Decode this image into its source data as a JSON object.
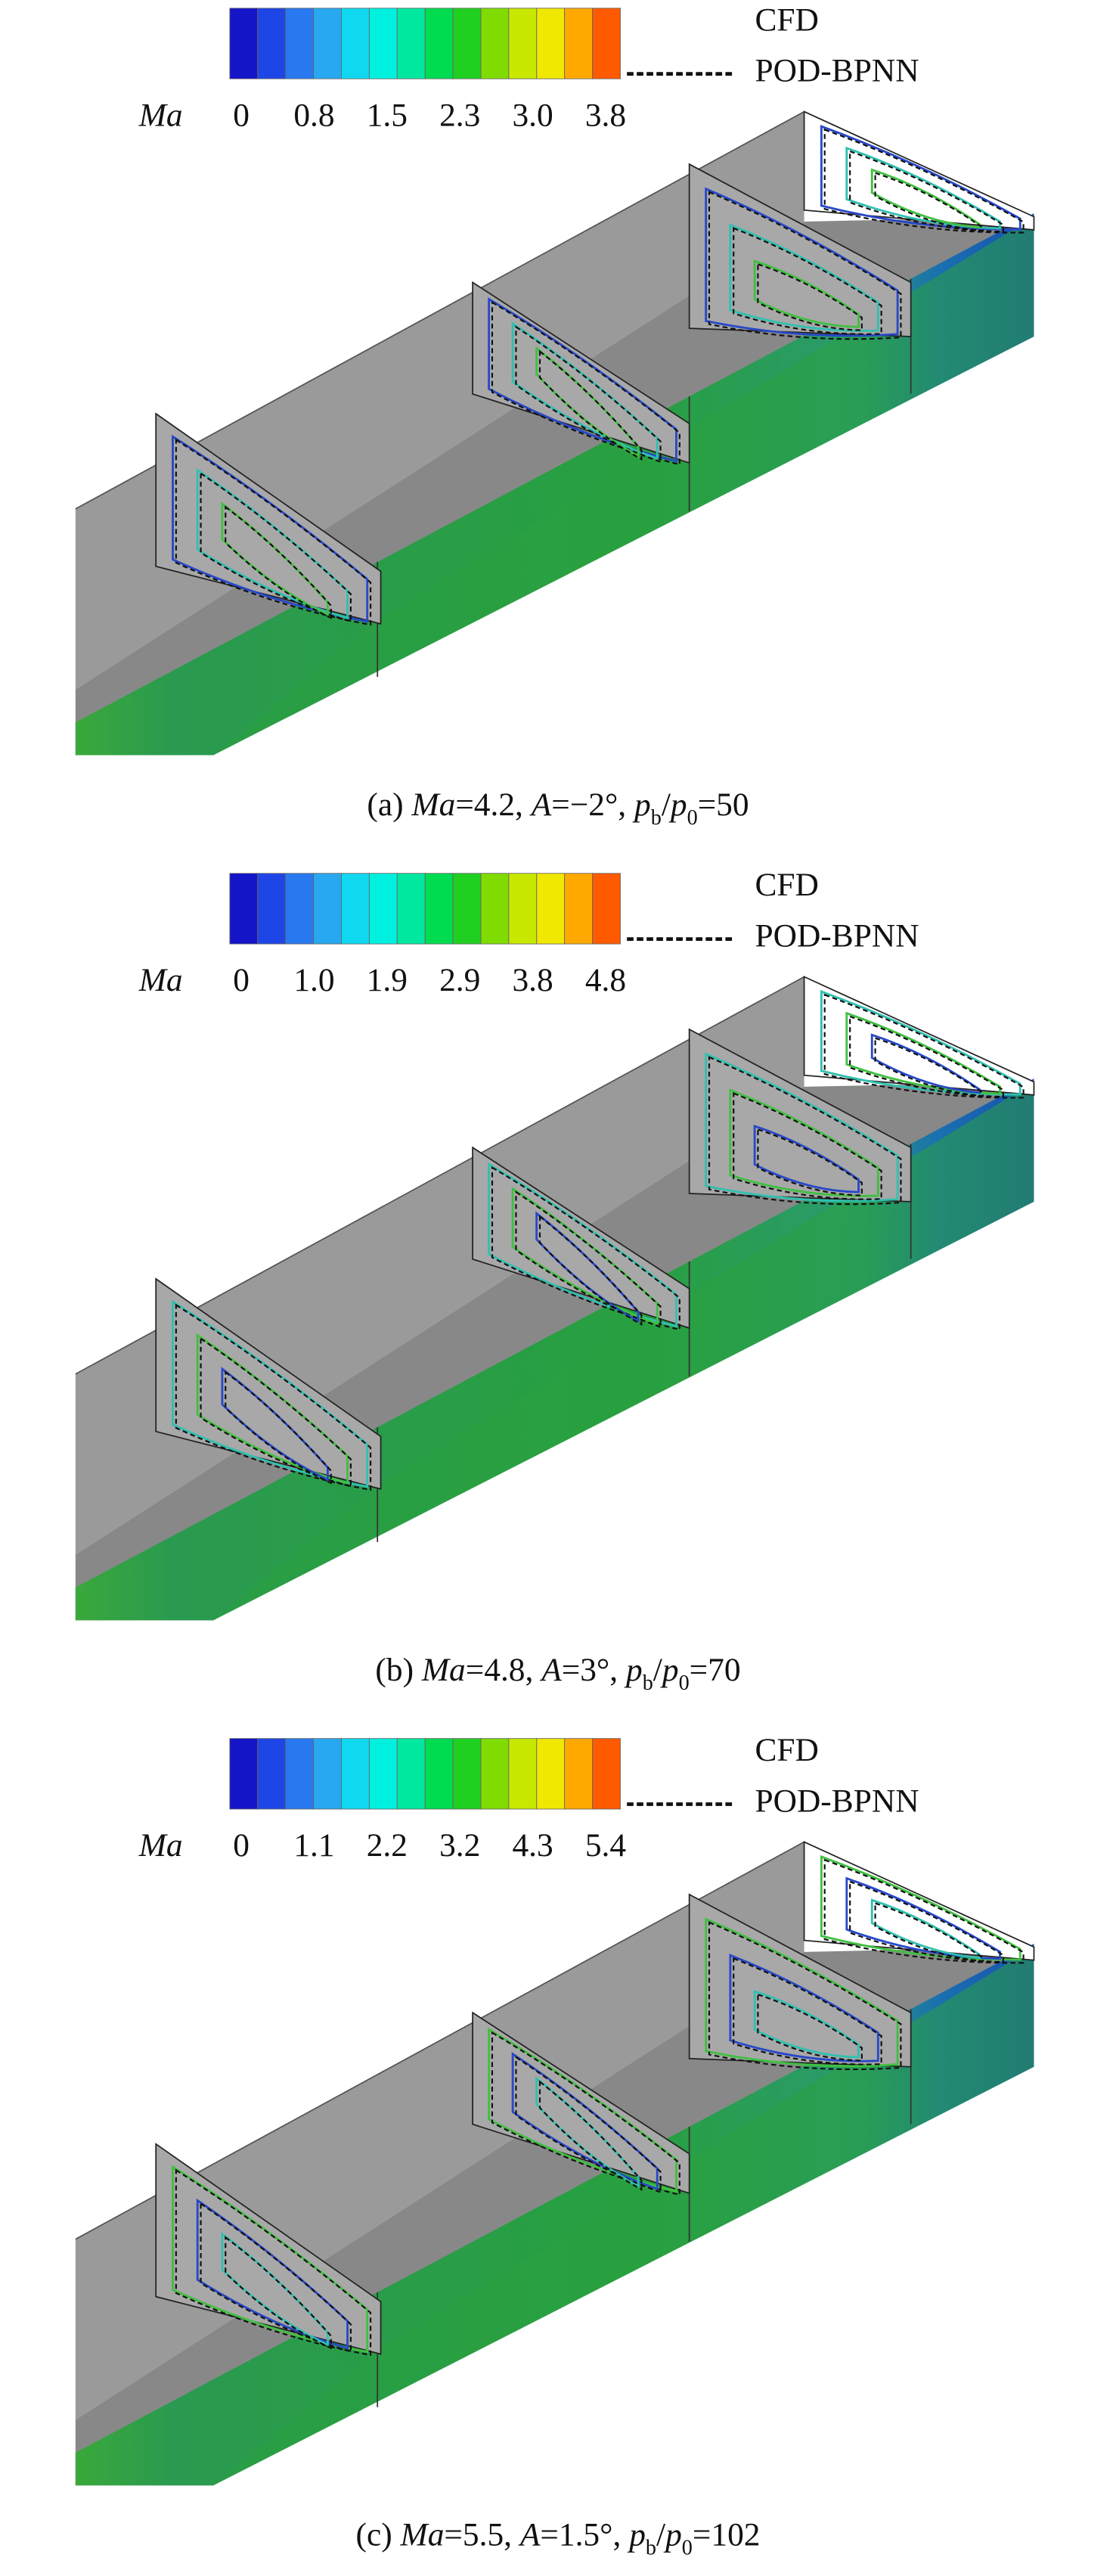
{
  "panels": [
    {
      "colorbar": {
        "label": "Ma",
        "ticks": [
          "0",
          "0.8",
          "1.5",
          "2.3",
          "3.0",
          "3.8"
        ],
        "colors": [
          "#1414c8",
          "#1e46e6",
          "#2878f0",
          "#28a8f0",
          "#10d8f0",
          "#00f0e0",
          "#00e8a0",
          "#00dc50",
          "#20d020",
          "#80dc00",
          "#c8e800",
          "#f0e800",
          "#ffa800",
          "#ff5a00"
        ]
      },
      "legend": [
        {
          "label": "CFD",
          "style": "solid"
        },
        {
          "label": "POD-BPNN",
          "style": "dashed"
        }
      ],
      "caption": [
        {
          "text": "(a) "
        },
        {
          "text": "Ma",
          "style": "italic"
        },
        {
          "text": "=4.2, "
        },
        {
          "text": "A",
          "style": "italic"
        },
        {
          "text": "=−2°, "
        },
        {
          "text": "p",
          "style": "italic"
        },
        {
          "text": "b",
          "style": "sub"
        },
        {
          "text": "/"
        },
        {
          "text": "p",
          "style": "italic"
        },
        {
          "text": "0",
          "style": "sub"
        },
        {
          "text": "=50"
        }
      ]
    },
    {
      "colorbar": {
        "label": "Ma",
        "ticks": [
          "0",
          "1.0",
          "1.9",
          "2.9",
          "3.8",
          "4.8"
        ],
        "colors": [
          "#1414c8",
          "#1e46e6",
          "#2878f0",
          "#28a8f0",
          "#10d8f0",
          "#00f0e0",
          "#00e8a0",
          "#00dc50",
          "#20d020",
          "#80dc00",
          "#c8e800",
          "#f0e800",
          "#ffa800",
          "#ff5a00"
        ]
      },
      "legend": [
        {
          "label": "CFD",
          "style": "solid"
        },
        {
          "label": "POD-BPNN",
          "style": "dashed"
        }
      ],
      "caption": [
        {
          "text": "(b) "
        },
        {
          "text": "Ma",
          "style": "italic"
        },
        {
          "text": "=4.8, "
        },
        {
          "text": "A",
          "style": "italic"
        },
        {
          "text": "=3°, "
        },
        {
          "text": "p",
          "style": "italic"
        },
        {
          "text": "b",
          "style": "sub"
        },
        {
          "text": "/"
        },
        {
          "text": "p",
          "style": "italic"
        },
        {
          "text": "0",
          "style": "sub"
        },
        {
          "text": "=70"
        }
      ]
    },
    {
      "colorbar": {
        "label": "Ma",
        "ticks": [
          "0",
          "1.1",
          "2.2",
          "3.2",
          "4.3",
          "5.4"
        ],
        "colors": [
          "#1414c8",
          "#1e46e6",
          "#2878f0",
          "#28a8f0",
          "#10d8f0",
          "#00f0e0",
          "#00e8a0",
          "#00dc50",
          "#20d020",
          "#80dc00",
          "#c8e800",
          "#f0e800",
          "#ffa800",
          "#ff5a00"
        ]
      },
      "legend": [
        {
          "label": "CFD",
          "style": "solid"
        },
        {
          "label": "POD-BPNN",
          "style": "dashed"
        }
      ],
      "caption": [
        {
          "text": "(c) "
        },
        {
          "text": "Ma",
          "style": "italic"
        },
        {
          "text": "=5.5, "
        },
        {
          "text": "A",
          "style": "italic"
        },
        {
          "text": "=1.5°, "
        },
        {
          "text": "p",
          "style": "italic"
        },
        {
          "text": "b",
          "style": "sub"
        },
        {
          "text": "/"
        },
        {
          "text": "p",
          "style": "italic"
        },
        {
          "text": "0",
          "style": "sub"
        },
        {
          "text": "=102"
        }
      ]
    }
  ]
}
